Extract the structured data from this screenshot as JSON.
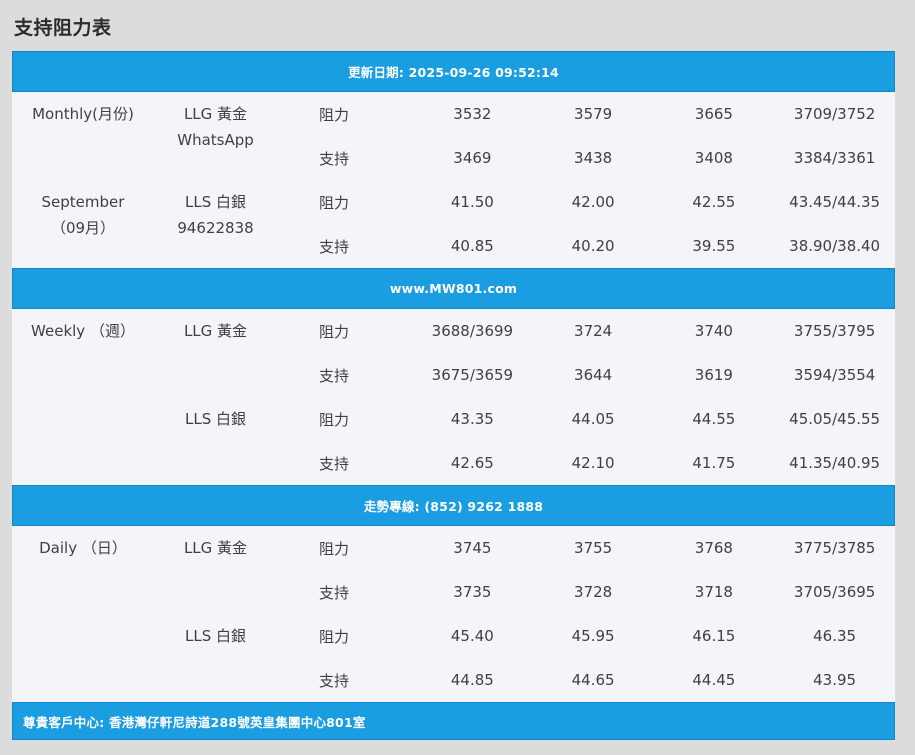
{
  "page_title": "支持阻力表",
  "theme": {
    "banner_blue": "#1b9de2",
    "banner_border": "#1486c6",
    "row_bg": "#f3f5f9",
    "page_bg": "#dcdcdc",
    "text_dark": "#3d4146",
    "banner_text": "#ffffff"
  },
  "table": {
    "sections": [
      {
        "banner": "更新日期: 2025-09-26 09:52:14",
        "banner_name": "update-date-banner",
        "groups": [
          {
            "period_lines": [
              "Monthly(月份)"
            ],
            "instrument_lines": [
              "LLG 黃金",
              "WhatsApp"
            ],
            "rows": [
              {
                "type": "阻力",
                "values": [
                  "3532",
                  "3579",
                  "3665",
                  "3709/3752"
                ]
              },
              {
                "type": "支持",
                "values": [
                  "3469",
                  "3438",
                  "3408",
                  "3384/3361"
                ]
              }
            ]
          },
          {
            "period_lines": [
              "September",
              "（09月）"
            ],
            "instrument_lines": [
              "LLS 白銀",
              "94622838"
            ],
            "rows": [
              {
                "type": "阻力",
                "values": [
                  "41.50",
                  "42.00",
                  "42.55",
                  "43.45/44.35"
                ]
              },
              {
                "type": "支持",
                "values": [
                  "40.85",
                  "40.20",
                  "39.55",
                  "38.90/38.40"
                ]
              }
            ]
          }
        ]
      },
      {
        "banner": "www.MW801.com",
        "banner_name": "website-banner",
        "groups": [
          {
            "period_lines": [
              "Weekly （週）"
            ],
            "instrument_lines": [
              "LLG 黃金"
            ],
            "rows": [
              {
                "type": "阻力",
                "values": [
                  "3688/3699",
                  "3724",
                  "3740",
                  "3755/3795"
                ]
              },
              {
                "type": "支持",
                "values": [
                  "3675/3659",
                  "3644",
                  "3619",
                  "3594/3554"
                ]
              }
            ]
          },
          {
            "period_lines": [],
            "instrument_lines": [
              "LLS 白銀"
            ],
            "rows": [
              {
                "type": "阻力",
                "values": [
                  "43.35",
                  "44.05",
                  "44.55",
                  "45.05/45.55"
                ]
              },
              {
                "type": "支持",
                "values": [
                  "42.65",
                  "42.10",
                  "41.75",
                  "41.35/40.95"
                ]
              }
            ]
          }
        ]
      },
      {
        "banner": "走勢專線: (852) 9262 1888",
        "banner_name": "hotline-banner",
        "groups": [
          {
            "period_lines": [
              "Daily （日）"
            ],
            "instrument_lines": [
              "LLG 黃金"
            ],
            "rows": [
              {
                "type": "阻力",
                "values": [
                  "3745",
                  "3755",
                  "3768",
                  "3775/3785"
                ]
              },
              {
                "type": "支持",
                "values": [
                  "3735",
                  "3728",
                  "3718",
                  "3705/3695"
                ]
              }
            ]
          },
          {
            "period_lines": [],
            "instrument_lines": [
              "LLS 白銀"
            ],
            "rows": [
              {
                "type": "阻力",
                "values": [
                  "45.40",
                  "45.95",
                  "46.15",
                  "46.35"
                ]
              },
              {
                "type": "支持",
                "values": [
                  "44.85",
                  "44.65",
                  "44.45",
                  "43.95"
                ]
              }
            ]
          }
        ]
      }
    ],
    "footer": "尊貴客戶中心: 香港灣仔軒尼詩道288號英皇集團中心801室"
  }
}
